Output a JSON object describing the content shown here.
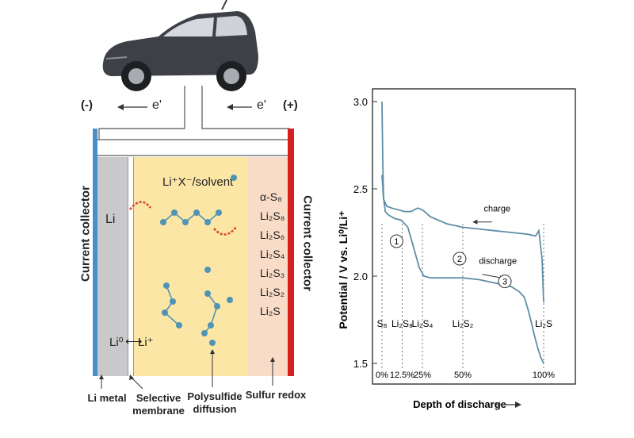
{
  "battery": {
    "terminal_neg": "(-)",
    "terminal_pos": "(+)",
    "electron_left": "e'",
    "electron_right": "e'",
    "left_collector": "Current collector",
    "right_collector": "Current collector",
    "anode": "Li",
    "electrolyte": "Li⁺X⁻/solvent",
    "exchange_left": "Li⁰",
    "exchange_right": "Li⁺",
    "species": [
      "α-S₈",
      "Li₂S₈",
      "Li₂S₆",
      "Li₂S₄",
      "Li₂S₃",
      "Li₂S₂",
      "Li₂S"
    ],
    "bottom_labels": {
      "li_metal": "Li metal",
      "membrane_line1": "Selective",
      "membrane_line2": "membrane",
      "polysulfide_line1": "Polysulfide",
      "polysulfide_line2": "diffusion",
      "redox": "Sulfur redox"
    },
    "colors": {
      "electrolyte": "#fbe6a6",
      "cathode": "#f9dcc8",
      "anode": "#c9c9cb",
      "neg_collector": "#4a90c8",
      "pos_collector": "#d62020",
      "molecule": "#4f93b5",
      "arc": "#d8432f"
    }
  },
  "chart_data": {
    "type": "line",
    "title": "",
    "xlabel": "Depth of discharge",
    "ylabel": "Potential / V vs. Li⁰/Li⁺",
    "ylim": [
      1.5,
      3.0
    ],
    "xlim": [
      0,
      100
    ],
    "y_ticks": [
      "3.0",
      "2.5",
      "2.0",
      "1.5"
    ],
    "x_ticks": [
      {
        "label": "0%",
        "x": 0
      },
      {
        "label": "12.5%",
        "x": 12.5
      },
      {
        "label": "25%",
        "x": 25
      },
      {
        "label": "50%",
        "x": 50
      },
      {
        "label": "100%",
        "x": 100
      }
    ],
    "phase_labels": [
      {
        "label": "S₈",
        "x": 0
      },
      {
        "label": "Li₂S₈",
        "x": 12.5
      },
      {
        "label": "Li₂S₄",
        "x": 25
      },
      {
        "label": "Li₂S₂",
        "x": 50
      },
      {
        "label": "Li₂S",
        "x": 100
      }
    ],
    "annotations": [
      "charge",
      "discharge"
    ],
    "regions": [
      "1",
      "2",
      "3"
    ],
    "series": [
      {
        "name": "charge",
        "x": [
          0,
          1,
          3,
          6,
          10,
          14,
          18,
          22,
          25,
          30,
          40,
          50,
          60,
          70,
          80,
          90,
          95,
          97,
          99,
          100
        ],
        "y": [
          2.58,
          2.44,
          2.4,
          2.39,
          2.38,
          2.37,
          2.37,
          2.39,
          2.38,
          2.34,
          2.3,
          2.28,
          2.27,
          2.26,
          2.25,
          2.24,
          2.23,
          2.26,
          2.1,
          1.85
        ]
      },
      {
        "name": "discharge",
        "x": [
          0,
          0.5,
          1,
          2,
          4,
          8,
          12,
          16,
          20,
          23,
          26,
          30,
          40,
          50,
          60,
          70,
          80,
          85,
          88,
          90,
          92,
          94,
          96,
          98,
          100
        ],
        "y": [
          3.0,
          2.65,
          2.45,
          2.37,
          2.35,
          2.33,
          2.32,
          2.28,
          2.15,
          2.05,
          2.0,
          1.99,
          1.99,
          1.99,
          1.98,
          1.96,
          1.94,
          1.91,
          1.88,
          1.82,
          1.75,
          1.67,
          1.6,
          1.54,
          1.5
        ]
      }
    ]
  }
}
